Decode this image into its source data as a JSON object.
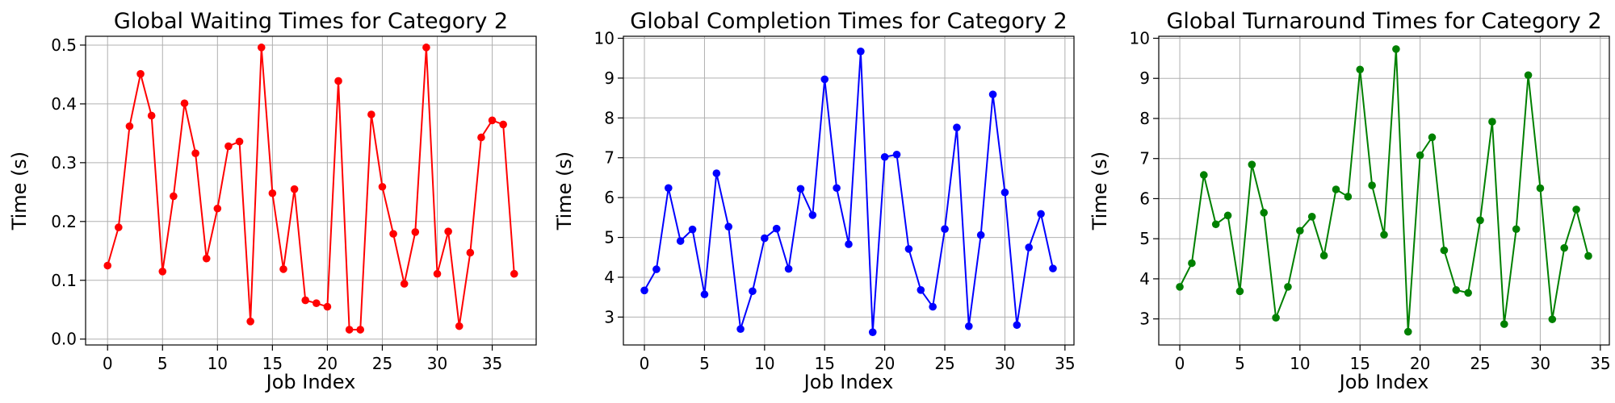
{
  "chart_data": [
    {
      "type": "line",
      "title": "Global Waiting Times for Category 2",
      "xlabel": "Job Index",
      "ylabel": "Time (s)",
      "color": "#ff0000",
      "xlim": [
        -2,
        39
      ],
      "ylim": [
        -0.01,
        0.515
      ],
      "xticks": [
        0,
        5,
        10,
        15,
        20,
        25,
        30,
        35
      ],
      "yticks": [
        0.0,
        0.1,
        0.2,
        0.3,
        0.4,
        0.5
      ],
      "ytick_labels": [
        "0.0",
        "0.1",
        "0.2",
        "0.3",
        "0.4",
        "0.5"
      ],
      "grid": true,
      "series": [
        {
          "x": [
            0,
            1,
            2,
            3,
            4,
            5,
            6,
            7,
            8,
            9,
            10,
            11,
            12,
            13,
            14,
            15,
            16,
            17,
            18,
            19,
            20,
            21,
            22,
            23,
            24,
            25,
            26,
            27,
            28,
            29,
            30,
            31,
            32,
            33,
            34,
            35,
            36,
            37
          ],
          "values": [
            0.125,
            0.19,
            0.362,
            0.451,
            0.38,
            0.115,
            0.243,
            0.401,
            0.316,
            0.137,
            0.222,
            0.328,
            0.336,
            0.03,
            0.496,
            0.248,
            0.119,
            0.255,
            0.066,
            0.061,
            0.055,
            0.439,
            0.016,
            0.016,
            0.382,
            0.259,
            0.179,
            0.094,
            0.182,
            0.496,
            0.111,
            0.183,
            0.022,
            0.147,
            0.343,
            0.372,
            0.365,
            0.111
          ]
        }
      ]
    },
    {
      "type": "line",
      "title": "Global Completion Times for Category 2",
      "xlabel": "Job Index",
      "ylabel": "Time (s)",
      "color": "#0000ff",
      "xlim": [
        -1.75,
        35.75
      ],
      "ylim": [
        2.3,
        10.05
      ],
      "xticks": [
        0,
        5,
        10,
        15,
        20,
        25,
        30,
        35
      ],
      "yticks": [
        3,
        4,
        5,
        6,
        7,
        8,
        9,
        10
      ],
      "ytick_labels": [
        "3",
        "4",
        "5",
        "6",
        "7",
        "8",
        "9",
        "10"
      ],
      "grid": true,
      "series": [
        {
          "x": [
            0,
            1,
            2,
            3,
            4,
            5,
            6,
            7,
            8,
            9,
            10,
            11,
            12,
            13,
            14,
            15,
            16,
            17,
            18,
            19,
            20,
            21,
            22,
            23,
            24,
            25,
            26,
            27,
            28,
            29,
            30,
            31,
            32,
            33,
            34
          ],
          "values": [
            3.67,
            4.2,
            6.24,
            4.91,
            5.2,
            3.57,
            6.61,
            5.27,
            2.7,
            3.65,
            4.98,
            5.22,
            4.21,
            6.22,
            5.56,
            8.97,
            6.24,
            4.83,
            9.67,
            2.62,
            7.02,
            7.08,
            4.71,
            3.68,
            3.26,
            5.21,
            7.76,
            2.77,
            5.06,
            8.59,
            6.13,
            2.8,
            4.75,
            5.59,
            4.22
          ]
        }
      ]
    },
    {
      "type": "line",
      "title": "Global Turnaround Times for Category 2",
      "xlabel": "Job Index",
      "ylabel": "Time (s)",
      "color": "#008000",
      "xlim": [
        -1.75,
        35.75
      ],
      "ylim": [
        2.35,
        10.05
      ],
      "xticks": [
        0,
        5,
        10,
        15,
        20,
        25,
        30,
        35
      ],
      "yticks": [
        3,
        4,
        5,
        6,
        7,
        8,
        9,
        10
      ],
      "ytick_labels": [
        "3",
        "4",
        "5",
        "6",
        "7",
        "8",
        "9",
        "10"
      ],
      "grid": true,
      "series": [
        {
          "x": [
            0,
            1,
            2,
            3,
            4,
            5,
            6,
            7,
            8,
            9,
            10,
            11,
            12,
            13,
            14,
            15,
            16,
            17,
            18,
            19,
            20,
            21,
            22,
            23,
            24,
            25,
            26,
            27,
            28,
            29,
            30,
            31,
            32,
            33,
            34
          ],
          "values": [
            3.8,
            4.39,
            6.59,
            5.36,
            5.58,
            3.69,
            6.85,
            5.65,
            3.03,
            3.8,
            5.2,
            5.55,
            4.58,
            6.23,
            6.05,
            9.22,
            6.33,
            5.1,
            9.73,
            2.68,
            7.08,
            7.53,
            4.71,
            3.72,
            3.65,
            5.46,
            7.92,
            2.87,
            5.24,
            9.08,
            6.26,
            2.99,
            4.77,
            5.73,
            4.57
          ]
        }
      ]
    }
  ]
}
